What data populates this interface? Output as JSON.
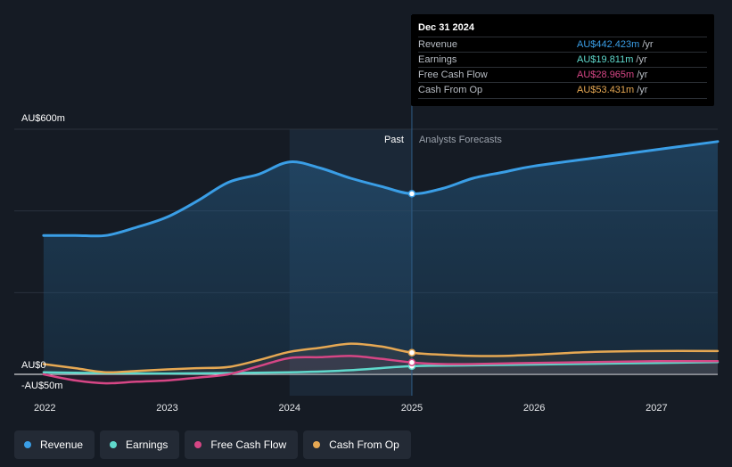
{
  "chart_data": {
    "type": "line",
    "title": "",
    "y_axis": {
      "labels": [
        "AU$600m",
        "AU$0",
        "-AU$50m"
      ],
      "ylim": [
        -50,
        600
      ]
    },
    "x_axis": {
      "tick_labels": [
        "2022",
        "2023",
        "2024",
        "2025",
        "2026",
        "2027"
      ],
      "xlim": [
        2021.75,
        2027.5
      ]
    },
    "regions": {
      "past": "Past",
      "forecast": "Analysts Forecasts",
      "divider_x": 2025.0,
      "past_shade_start": 2024.0
    },
    "series": [
      {
        "name": "Revenue",
        "color": "#3a9ee6",
        "fill": true,
        "x": [
          2021.99,
          2022.25,
          2022.5,
          2022.75,
          2023.0,
          2023.25,
          2023.5,
          2023.75,
          2024.0,
          2024.25,
          2024.5,
          2024.75,
          2025.0,
          2025.25,
          2025.5,
          2025.75,
          2026.0,
          2026.5,
          2027.0,
          2027.5
        ],
        "values": [
          340,
          340,
          340,
          360,
          385,
          425,
          470,
          490,
          520,
          505,
          480,
          460,
          442,
          455,
          480,
          495,
          510,
          530,
          550,
          570
        ]
      },
      {
        "name": "Earnings",
        "color": "#5fd9cc",
        "fill": false,
        "x": [
          2021.99,
          2022.5,
          2023.0,
          2023.5,
          2024.0,
          2024.5,
          2025.0,
          2025.5,
          2026.0,
          2026.5,
          2027.0,
          2027.5
        ],
        "values": [
          5,
          3,
          2,
          3,
          5,
          10,
          20,
          22,
          24,
          26,
          28,
          30
        ]
      },
      {
        "name": "Free Cash Flow",
        "color": "#d64685",
        "fill": false,
        "x": [
          2021.99,
          2022.25,
          2022.5,
          2022.75,
          2023.0,
          2023.25,
          2023.5,
          2023.75,
          2024.0,
          2024.25,
          2024.5,
          2024.75,
          2025.0,
          2025.25,
          2025.5,
          2026.0,
          2026.5,
          2027.0,
          2027.5
        ],
        "values": [
          0,
          -15,
          -22,
          -18,
          -15,
          -8,
          0,
          20,
          40,
          42,
          45,
          38,
          29,
          25,
          25,
          28,
          30,
          32,
          32
        ]
      },
      {
        "name": "Cash From Op",
        "color": "#e6a853",
        "fill": false,
        "x": [
          2021.99,
          2022.25,
          2022.5,
          2022.75,
          2023.0,
          2023.25,
          2023.5,
          2023.75,
          2024.0,
          2024.25,
          2024.5,
          2024.75,
          2025.0,
          2025.25,
          2025.5,
          2025.75,
          2026.0,
          2026.5,
          2027.0,
          2027.5
        ],
        "values": [
          25,
          15,
          5,
          8,
          12,
          15,
          18,
          35,
          55,
          65,
          75,
          68,
          53,
          48,
          45,
          45,
          48,
          55,
          57,
          57
        ]
      }
    ],
    "highlight_x": 2025.0
  },
  "tooltip": {
    "date": "Dec 31 2024",
    "rows": [
      {
        "label": "Revenue",
        "value": "AU$442.423m",
        "unit": "/yr",
        "color": "#3a9ee6"
      },
      {
        "label": "Earnings",
        "value": "AU$19.811m",
        "unit": "/yr",
        "color": "#5fd9cc"
      },
      {
        "label": "Free Cash Flow",
        "value": "AU$28.965m",
        "unit": "/yr",
        "color": "#d64685"
      },
      {
        "label": "Cash From Op",
        "value": "AU$53.431m",
        "unit": "/yr",
        "color": "#e6a853"
      }
    ]
  },
  "legend": [
    {
      "label": "Revenue",
      "color": "#3a9ee6"
    },
    {
      "label": "Earnings",
      "color": "#5fd9cc"
    },
    {
      "label": "Free Cash Flow",
      "color": "#d64685"
    },
    {
      "label": "Cash From Op",
      "color": "#e6a853"
    }
  ]
}
